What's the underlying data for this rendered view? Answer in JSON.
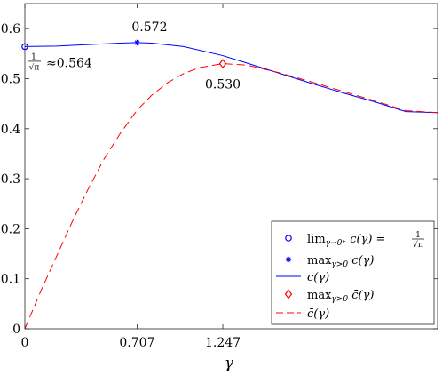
{
  "chart_data": {
    "type": "line",
    "xlabel": "γ",
    "ylabel": "",
    "title": "",
    "xlim": [
      0,
      2.6
    ],
    "ylim": [
      0,
      0.65
    ],
    "xticks": [
      0,
      0.707,
      1.247
    ],
    "xtick_labels": [
      "0",
      "0.707",
      "1.247"
    ],
    "yticks": [
      0,
      0.1,
      0.2,
      0.3,
      0.4,
      0.5,
      0.6
    ],
    "ytick_labels": [
      "0",
      "0.1",
      "0.2",
      "0.3",
      "0.4",
      "0.5",
      "0.6"
    ],
    "grid": false,
    "legend_position": "bottom-right",
    "series": [
      {
        "name": "c(γ)",
        "style": "solid",
        "color": "#0000ff",
        "x": [
          0,
          0.2,
          0.4,
          0.6,
          0.707,
          0.8,
          1.0,
          1.247,
          1.4,
          1.6,
          1.8,
          2.0,
          2.2,
          2.4,
          2.6
        ],
        "y": [
          0.564,
          0.565,
          0.568,
          0.571,
          0.572,
          0.571,
          0.564,
          0.546,
          0.531,
          0.511,
          0.491,
          0.472,
          0.454,
          0.434,
          0.432
        ]
      },
      {
        "name": "c̄(γ)",
        "style": "dashed",
        "color": "#ff0000",
        "x": [
          0,
          0.1,
          0.2,
          0.3,
          0.4,
          0.5,
          0.6,
          0.707,
          0.8,
          0.9,
          1.0,
          1.1,
          1.247,
          1.4,
          1.6,
          1.8,
          2.0,
          2.2,
          2.4,
          2.6
        ],
        "y": [
          0,
          0.075,
          0.145,
          0.215,
          0.28,
          0.34,
          0.39,
          0.437,
          0.467,
          0.492,
          0.51,
          0.522,
          0.53,
          0.527,
          0.512,
          0.494,
          0.475,
          0.456,
          0.436,
          0.432
        ]
      }
    ],
    "points": [
      {
        "name": "lim_{γ→0⁺} c(γ) = 1/√π",
        "x": 0,
        "y": 0.564,
        "marker": "circle",
        "color": "#0000ff"
      },
      {
        "name": "max_{γ>0} c(γ)",
        "x": 0.707,
        "y": 0.572,
        "marker": "star",
        "color": "#0000ff"
      },
      {
        "name": "max_{γ>0} c̄(γ)",
        "x": 1.247,
        "y": 0.53,
        "marker": "diamond",
        "color": "#ff0000"
      }
    ],
    "annotations": [
      {
        "id": "max_c",
        "text": "0.572",
        "x": 0.707,
        "y": 0.572
      },
      {
        "id": "max_cbar",
        "text": "0.530",
        "x": 1.247,
        "y": 0.53
      },
      {
        "id": "limit",
        "fraction_num": "1",
        "fraction_den": "√π",
        "text": "≈0.564",
        "x": 0,
        "y": 0.564
      }
    ],
    "legend": [
      {
        "marker": "circle",
        "color": "#0000ff",
        "text": "lim",
        "sub": "γ→0⁺",
        "rest": " c(γ) = ",
        "frac_num": "1",
        "frac_den": "√π"
      },
      {
        "marker": "star",
        "color": "#0000ff",
        "text": "max",
        "sub": "γ>0",
        "rest": " c(γ)"
      },
      {
        "marker": "line-solid",
        "color": "#0000ff",
        "text": "c(γ)"
      },
      {
        "marker": "diamond",
        "color": "#ff0000",
        "text": "max",
        "sub": "γ>0",
        "rest": " c̄(γ)"
      },
      {
        "marker": "line-dashed",
        "color": "#ff0000",
        "text": "c̄(γ)"
      }
    ]
  }
}
